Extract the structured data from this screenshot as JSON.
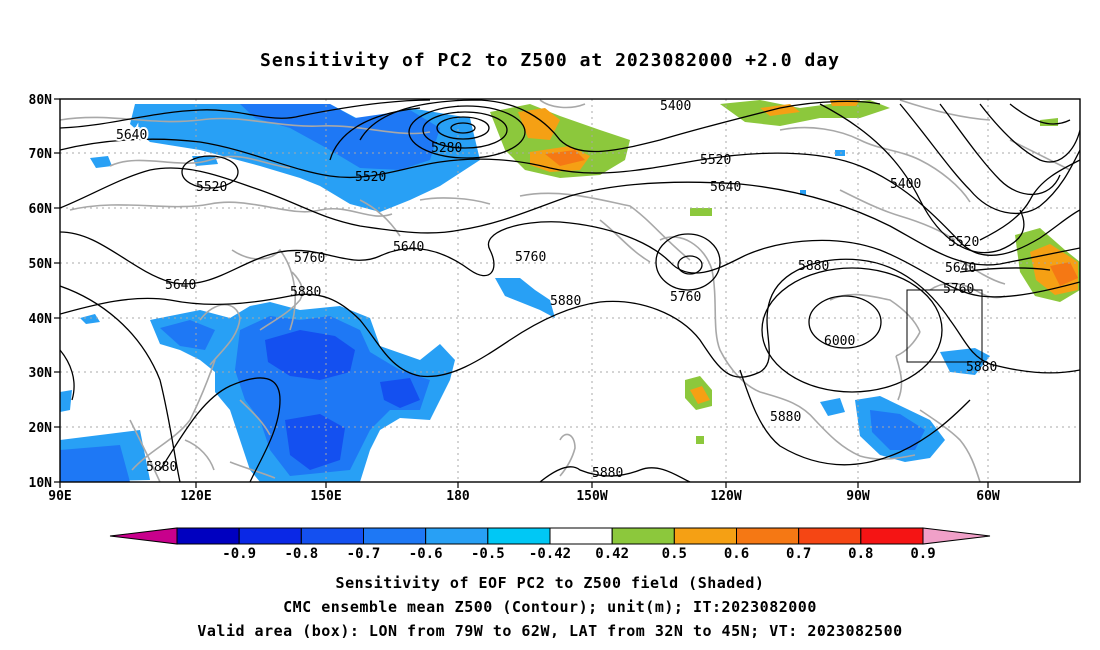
{
  "title": "Sensitivity of PC2 to Z500 at 2023082000 +2.0 day",
  "map": {
    "lat_labels": [
      "80N",
      "70N",
      "60N",
      "50N",
      "40N",
      "30N",
      "20N",
      "10N"
    ],
    "lon_labels": [
      "90E",
      "120E",
      "150E",
      "180",
      "150W",
      "120W",
      "90W",
      "60W"
    ],
    "contour_labels": [
      "5640",
      "5520",
      "5280",
      "5520",
      "5400",
      "5520",
      "5640",
      "5400",
      "5520",
      "5640",
      "5760",
      "5640",
      "5760",
      "5880",
      "5760",
      "5880",
      "5640",
      "5760",
      "5880",
      "6000",
      "5880",
      "5880",
      "5880",
      "5880"
    ],
    "valid_box": {
      "lon": "79W-62W",
      "lat": "32N-45N"
    }
  },
  "colorbar": {
    "labels": [
      "-0.9",
      "-0.8",
      "-0.7",
      "-0.6",
      "-0.5",
      "-0.42",
      "0.42",
      "0.5",
      "0.6",
      "0.7",
      "0.8",
      "0.9"
    ],
    "colors": [
      "#c8008c",
      "#0000c0",
      "#0a28e6",
      "#1450f0",
      "#1e78f5",
      "#28a0f5",
      "#00c8f5",
      "#ffffff",
      "#8cc83c",
      "#f5a014",
      "#f57814",
      "#f54614",
      "#f51414",
      "#f0a0c8"
    ]
  },
  "captions": [
    "Sensitivity of EOF PC2 to Z500 field (Shaded)",
    "CMC ensemble mean Z500 (Contour); unit(m); IT:2023082000",
    "Valid area (box): LON from 79W to 62W, LAT from 32N to 45N; VT: 2023082500"
  ]
}
